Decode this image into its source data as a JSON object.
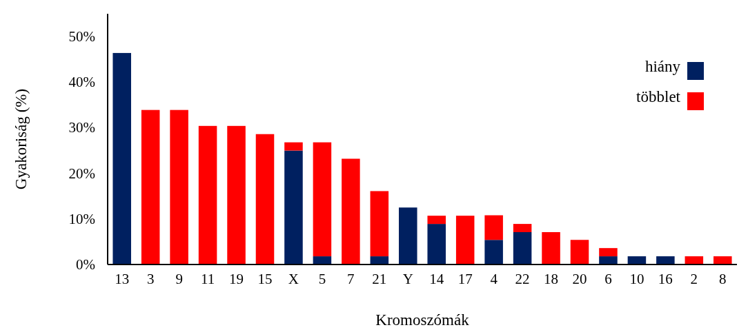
{
  "chart_data": {
    "type": "bar",
    "stacked": true,
    "xlabel": "Kromoszómák",
    "ylabel": "Gyakoriság (%)",
    "categories": [
      "13",
      "3",
      "9",
      "11",
      "19",
      "15",
      "X",
      "5",
      "7",
      "21",
      "Y",
      "14",
      "17",
      "4",
      "22",
      "18",
      "20",
      "6",
      "10",
      "16",
      "2",
      "8"
    ],
    "series": [
      {
        "name": "hiány",
        "color": "#002060",
        "values": [
          46.4,
          0,
          0,
          0,
          0,
          0,
          25.0,
          1.8,
          0,
          1.8,
          12.5,
          8.9,
          0,
          5.4,
          7.1,
          0,
          0,
          1.8,
          1.8,
          1.8,
          0,
          0
        ]
      },
      {
        "name": "többlet",
        "color": "#ff0000",
        "values": [
          0,
          33.9,
          33.9,
          30.4,
          30.4,
          28.6,
          1.8,
          25.0,
          23.2,
          14.3,
          0,
          1.8,
          10.7,
          5.4,
          1.8,
          7.1,
          5.4,
          1.8,
          0,
          0,
          1.8,
          1.8
        ]
      }
    ],
    "ylim": [
      0,
      55
    ],
    "yticks": [
      {
        "value": 0,
        "label": "0%"
      },
      {
        "value": 10,
        "label": "10%"
      },
      {
        "value": 20,
        "label": "20%"
      },
      {
        "value": 30,
        "label": "30%"
      },
      {
        "value": 40,
        "label": "40%"
      },
      {
        "value": 50,
        "label": "50%"
      }
    ],
    "grid": false,
    "legend": "top right"
  }
}
